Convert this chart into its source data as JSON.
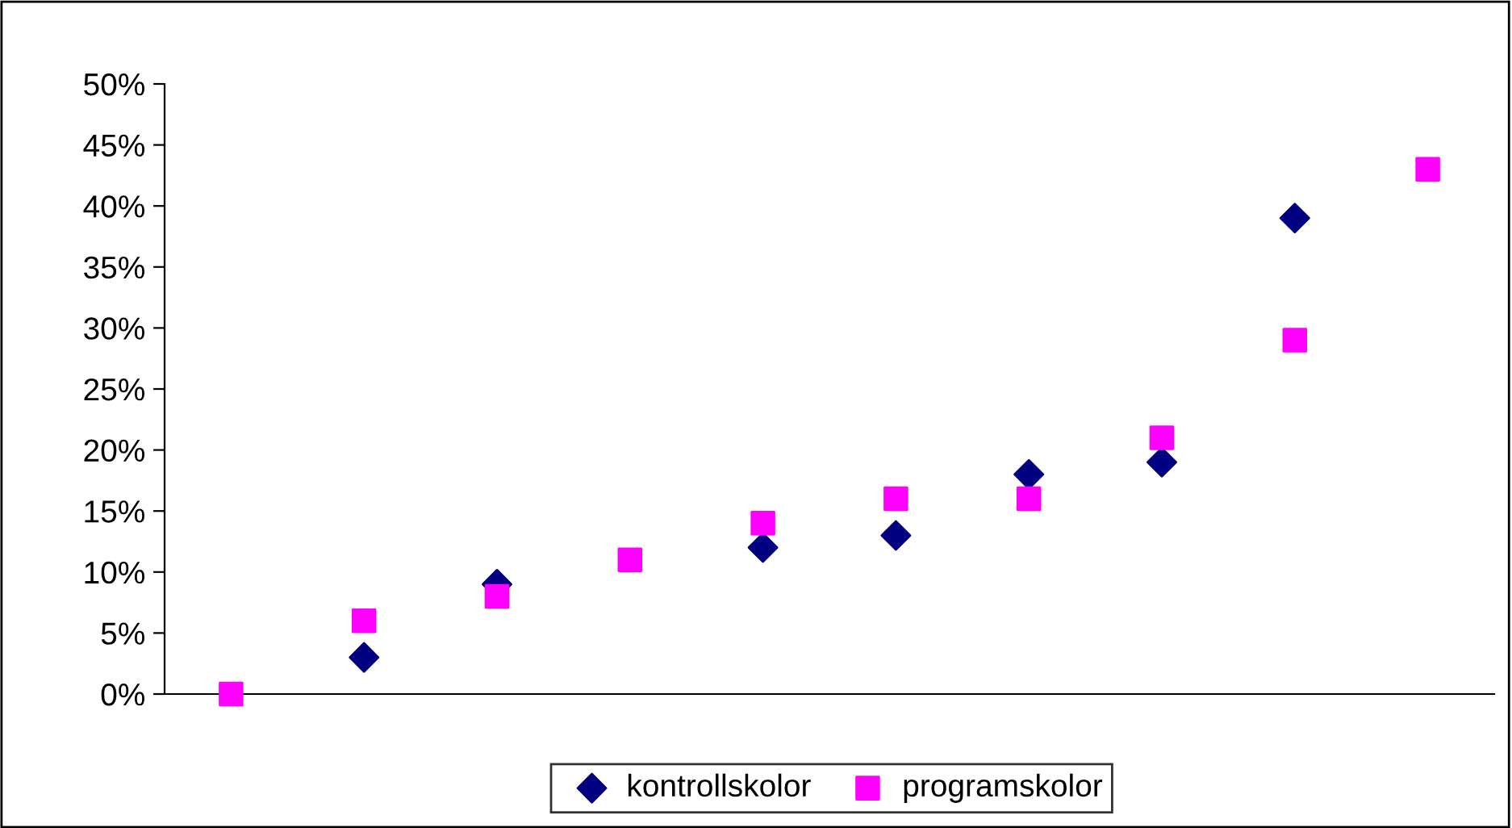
{
  "chart_data": {
    "type": "scatter",
    "categories": [
      null,
      null,
      null,
      null,
      null,
      null,
      null,
      null,
      null,
      null
    ],
    "series": [
      {
        "name": "kontrollskolor",
        "color": "#000080",
        "marker": "diamond",
        "values": [
          null,
          3,
          9,
          null,
          12,
          13,
          18,
          19,
          39,
          null
        ]
      },
      {
        "name": "programskolor",
        "color": "#ff00ff",
        "marker": "square",
        "values": [
          0,
          6,
          8,
          11,
          14,
          16,
          16,
          21,
          29,
          43
        ]
      }
    ],
    "ylim": [
      0,
      50
    ],
    "yticks": [
      {
        "value": 0,
        "label": "0%"
      },
      {
        "value": 5,
        "label": "5%"
      },
      {
        "value": 10,
        "label": "10%"
      },
      {
        "value": 15,
        "label": "15%"
      },
      {
        "value": 20,
        "label": "20%"
      },
      {
        "value": 25,
        "label": "25%"
      },
      {
        "value": 30,
        "label": "30%"
      },
      {
        "value": 35,
        "label": "35%"
      },
      {
        "value": 40,
        "label": "40%"
      },
      {
        "value": 45,
        "label": "45%"
      },
      {
        "value": 50,
        "label": "50%"
      }
    ],
    "grid": false,
    "legend": "bottom"
  }
}
